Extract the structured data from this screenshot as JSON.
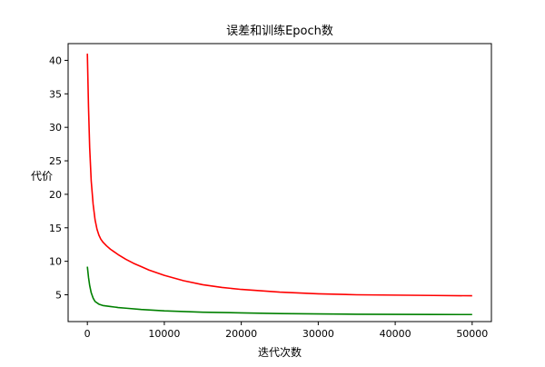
{
  "chart_data": {
    "type": "line",
    "title": "误差和训练Epoch数",
    "xlabel": "迭代次数",
    "ylabel": "代价",
    "xlim": [
      -2500,
      52500
    ],
    "ylim": [
      1.0,
      42.5
    ],
    "xticks": [
      0,
      10000,
      20000,
      30000,
      40000,
      50000
    ],
    "yticks": [
      5,
      10,
      15,
      20,
      25,
      30,
      35,
      40
    ],
    "grid": false,
    "legend": "none",
    "series": [
      {
        "color": "#ff0000",
        "x": [
          0,
          150,
          300,
          500,
          750,
          1000,
          1250,
          1500,
          1750,
          2000,
          2500,
          3000,
          3500,
          4000,
          5000,
          6000,
          7000,
          8000,
          10000,
          12500,
          15000,
          17500,
          20000,
          25000,
          30000,
          35000,
          40000,
          45000,
          50000
        ],
        "y": [
          41.0,
          33.0,
          27.0,
          22.0,
          18.5,
          16.2,
          14.8,
          13.9,
          13.3,
          12.9,
          12.3,
          11.8,
          11.4,
          11.0,
          10.3,
          9.7,
          9.2,
          8.7,
          7.9,
          7.1,
          6.5,
          6.1,
          5.8,
          5.4,
          5.15,
          5.0,
          4.95,
          4.9,
          4.85
        ]
      },
      {
        "color": "#008000",
        "x": [
          0,
          150,
          300,
          500,
          750,
          1000,
          1500,
          2000,
          3000,
          4000,
          5000,
          7000,
          10000,
          15000,
          20000,
          25000,
          30000,
          35000,
          40000,
          45000,
          50000
        ],
        "y": [
          9.2,
          7.6,
          6.4,
          5.3,
          4.5,
          4.0,
          3.6,
          3.4,
          3.25,
          3.1,
          3.0,
          2.8,
          2.6,
          2.4,
          2.3,
          2.2,
          2.15,
          2.1,
          2.08,
          2.06,
          2.05
        ]
      }
    ]
  }
}
